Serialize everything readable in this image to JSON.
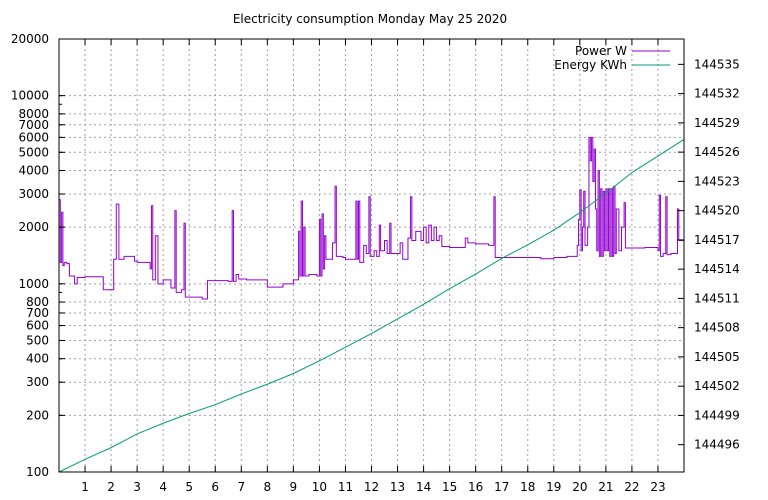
{
  "chart_data": {
    "type": "line",
    "title": "Electricity consumption Monday May 25 2020",
    "x": {
      "range": [
        0,
        24
      ],
      "ticks": [
        1,
        2,
        3,
        4,
        5,
        6,
        7,
        8,
        9,
        10,
        11,
        12,
        13,
        14,
        15,
        16,
        17,
        18,
        19,
        20,
        21,
        22,
        23
      ],
      "tick_labels": [
        "1",
        "2",
        "3",
        "4",
        "5",
        "6",
        "7",
        "8",
        "9",
        "10",
        "11",
        "12",
        "13",
        "14",
        "15",
        "16",
        "17",
        "18",
        "19",
        "20",
        "21",
        "22",
        "23"
      ]
    },
    "y_left": {
      "scale": "log",
      "range": [
        100,
        20000
      ],
      "ticks": [
        100,
        200,
        300,
        400,
        500,
        600,
        700,
        800,
        1000,
        2000,
        3000,
        4000,
        5000,
        6000,
        7000,
        8000,
        10000,
        20000
      ],
      "tick_labels": [
        "100",
        "200",
        "300",
        "400",
        "500",
        "600",
        "700",
        "800",
        "1000",
        "2000",
        "3000",
        "4000",
        "5000",
        "6000",
        "7000",
        "8000",
        "10000",
        "20000"
      ]
    },
    "y_right": {
      "scale": "linear",
      "range": [
        144493.2,
        144537.6
      ],
      "ticks": [
        144496,
        144499,
        144502,
        144505,
        144508,
        144511,
        144514,
        144517,
        144520,
        144523,
        144526,
        144529,
        144532,
        144535
      ],
      "tick_labels": [
        "144496",
        "144499",
        "144502",
        "144505",
        "144508",
        "144511",
        "144514",
        "144517",
        "144520",
        "144523",
        "144526",
        "144529",
        "144532",
        "144535"
      ]
    },
    "grid": true,
    "legend_position": "top-right",
    "series": [
      {
        "name": "Power W",
        "axis": "left",
        "color": "#9400d3",
        "points": [
          [
            0.0,
            2800
          ],
          [
            0.05,
            1300
          ],
          [
            0.1,
            2400
          ],
          [
            0.15,
            1250
          ],
          [
            0.2,
            1300
          ],
          [
            0.3,
            1280
          ],
          [
            0.4,
            1100
          ],
          [
            0.6,
            1000
          ],
          [
            0.7,
            1080
          ],
          [
            1.0,
            1090
          ],
          [
            1.5,
            1090
          ],
          [
            1.7,
            930
          ],
          [
            2.0,
            930
          ],
          [
            2.1,
            1350
          ],
          [
            2.2,
            2650
          ],
          [
            2.3,
            1350
          ],
          [
            2.5,
            1400
          ],
          [
            2.9,
            1320
          ],
          [
            3.0,
            1300
          ],
          [
            3.5,
            1200
          ],
          [
            3.55,
            2600
          ],
          [
            3.6,
            1050
          ],
          [
            3.7,
            1800
          ],
          [
            3.8,
            1000
          ],
          [
            4.0,
            1050
          ],
          [
            4.3,
            950
          ],
          [
            4.45,
            2450
          ],
          [
            4.5,
            900
          ],
          [
            4.7,
            930
          ],
          [
            4.8,
            2100
          ],
          [
            4.85,
            850
          ],
          [
            5.2,
            850
          ],
          [
            5.5,
            830
          ],
          [
            5.7,
            1040
          ],
          [
            6.0,
            1040
          ],
          [
            6.5,
            1030
          ],
          [
            6.65,
            2450
          ],
          [
            6.7,
            1030
          ],
          [
            6.8,
            1120
          ],
          [
            6.9,
            1060
          ],
          [
            7.2,
            1050
          ],
          [
            7.5,
            1050
          ],
          [
            8.0,
            960
          ],
          [
            8.3,
            960
          ],
          [
            8.6,
            1000
          ],
          [
            9.0,
            1050
          ],
          [
            9.2,
            1900
          ],
          [
            9.25,
            1100
          ],
          [
            9.3,
            2750
          ],
          [
            9.35,
            1100
          ],
          [
            9.4,
            2000
          ],
          [
            9.45,
            1100
          ],
          [
            9.6,
            1120
          ],
          [
            9.9,
            1100
          ],
          [
            10.0,
            2200
          ],
          [
            10.05,
            1100
          ],
          [
            10.1,
            2350
          ],
          [
            10.15,
            1200
          ],
          [
            10.2,
            1800
          ],
          [
            10.25,
            1350
          ],
          [
            10.4,
            1350
          ],
          [
            10.5,
            1650
          ],
          [
            10.6,
            3300
          ],
          [
            10.65,
            1400
          ],
          [
            10.9,
            1380
          ],
          [
            11.0,
            1350
          ],
          [
            11.3,
            1350
          ],
          [
            11.4,
            2750
          ],
          [
            11.45,
            1350
          ],
          [
            11.5,
            2750
          ],
          [
            11.55,
            1300
          ],
          [
            11.7,
            1600
          ],
          [
            11.8,
            1450
          ],
          [
            11.9,
            2900
          ],
          [
            11.95,
            1400
          ],
          [
            12.1,
            1500
          ],
          [
            12.2,
            1400
          ],
          [
            12.3,
            2050
          ],
          [
            12.35,
            1500
          ],
          [
            12.5,
            1700
          ],
          [
            12.6,
            1450
          ],
          [
            12.7,
            2100
          ],
          [
            12.75,
            1450
          ],
          [
            13.0,
            1450
          ],
          [
            13.1,
            1650
          ],
          [
            13.2,
            1350
          ],
          [
            13.4,
            1750
          ],
          [
            13.5,
            2900
          ],
          [
            13.55,
            1700
          ],
          [
            13.7,
            1900
          ],
          [
            13.9,
            1700
          ],
          [
            14.0,
            2000
          ],
          [
            14.1,
            1650
          ],
          [
            14.2,
            2050
          ],
          [
            14.3,
            1700
          ],
          [
            14.4,
            2000
          ],
          [
            14.5,
            1700
          ],
          [
            14.6,
            1800
          ],
          [
            14.7,
            1580
          ],
          [
            15.0,
            1560
          ],
          [
            15.5,
            1560
          ],
          [
            15.6,
            1750
          ],
          [
            15.7,
            1650
          ],
          [
            16.0,
            1630
          ],
          [
            16.5,
            1600
          ],
          [
            16.7,
            2900
          ],
          [
            16.75,
            1380
          ],
          [
            17.0,
            1380
          ],
          [
            18.0,
            1380
          ],
          [
            18.5,
            1360
          ],
          [
            19.0,
            1380
          ],
          [
            19.5,
            1400
          ],
          [
            19.9,
            1600
          ],
          [
            19.95,
            2200
          ],
          [
            20.0,
            3150
          ],
          [
            20.05,
            1500
          ],
          [
            20.1,
            2000
          ],
          [
            20.15,
            3100
          ],
          [
            20.2,
            1600
          ],
          [
            20.3,
            2000
          ],
          [
            20.35,
            6000
          ],
          [
            20.4,
            4500
          ],
          [
            20.45,
            6000
          ],
          [
            20.5,
            3500
          ],
          [
            20.55,
            5200
          ],
          [
            20.6,
            2500
          ],
          [
            20.65,
            1500
          ],
          [
            20.7,
            4000
          ],
          [
            20.75,
            1400
          ],
          [
            20.8,
            3200
          ],
          [
            20.85,
            1400
          ],
          [
            20.9,
            3100
          ],
          [
            20.95,
            1500
          ],
          [
            21.0,
            3200
          ],
          [
            21.05,
            1500
          ],
          [
            21.1,
            3200
          ],
          [
            21.15,
            1400
          ],
          [
            21.2,
            3200
          ],
          [
            21.25,
            1400
          ],
          [
            21.3,
            3300
          ],
          [
            21.35,
            1450
          ],
          [
            21.4,
            2500
          ],
          [
            21.5,
            1500
          ],
          [
            21.6,
            2000
          ],
          [
            21.7,
            2700
          ],
          [
            21.75,
            1550
          ],
          [
            22.0,
            1550
          ],
          [
            22.5,
            1560
          ],
          [
            23.0,
            1500
          ],
          [
            23.05,
            2950
          ],
          [
            23.1,
            1400
          ],
          [
            23.2,
            1450
          ],
          [
            23.3,
            2900
          ],
          [
            23.35,
            1430
          ],
          [
            23.5,
            1450
          ],
          [
            23.7,
            1450
          ],
          [
            23.75,
            2500
          ],
          [
            23.8,
            1700
          ],
          [
            24.0,
            1700
          ]
        ]
      },
      {
        "name": "Energy KWh",
        "axis": "right",
        "color": "#009e73",
        "points": [
          [
            0.0,
            144493.2
          ],
          [
            1.0,
            144494.5
          ],
          [
            2.0,
            144495.7
          ],
          [
            3.0,
            144497.1
          ],
          [
            4.0,
            144498.2
          ],
          [
            5.0,
            144499.2
          ],
          [
            6.0,
            144500.1
          ],
          [
            7.0,
            144501.2
          ],
          [
            8.0,
            144502.2
          ],
          [
            9.0,
            144503.3
          ],
          [
            10.0,
            144504.6
          ],
          [
            11.0,
            144506.0
          ],
          [
            12.0,
            144507.4
          ],
          [
            13.0,
            144508.9
          ],
          [
            14.0,
            144510.4
          ],
          [
            15.0,
            144512.0
          ],
          [
            16.0,
            144513.5
          ],
          [
            17.0,
            144515.1
          ],
          [
            18.0,
            144516.5
          ],
          [
            19.0,
            144518.0
          ],
          [
            20.0,
            144519.8
          ],
          [
            21.0,
            144521.8
          ],
          [
            22.0,
            144523.9
          ],
          [
            23.0,
            144525.6
          ],
          [
            24.0,
            144527.3
          ]
        ]
      }
    ]
  }
}
